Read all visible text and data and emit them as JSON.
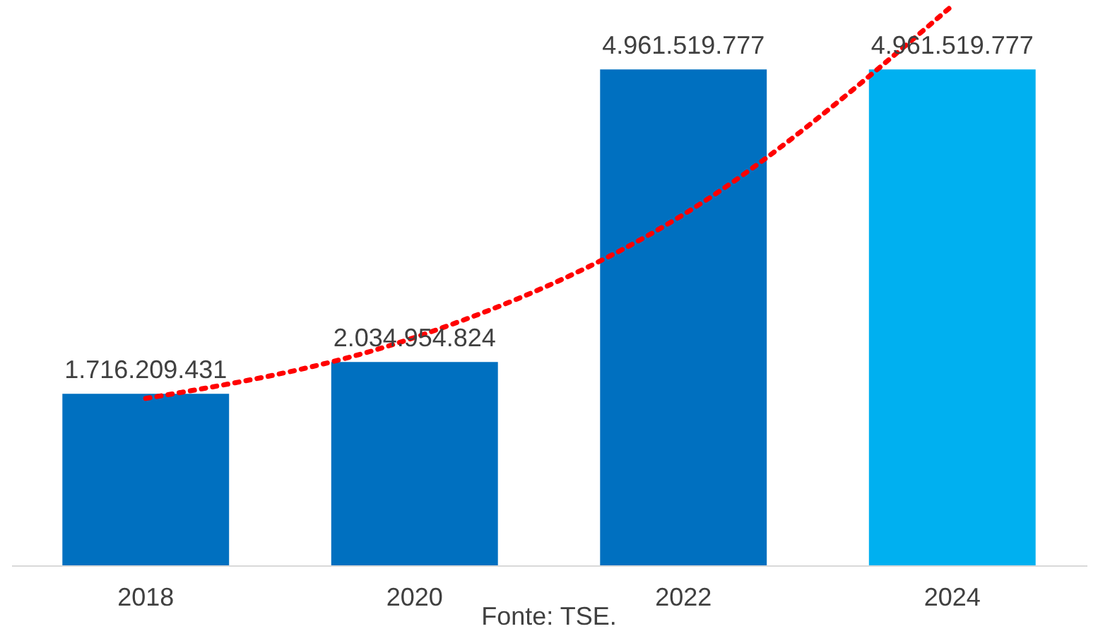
{
  "chart_data": {
    "type": "bar",
    "categories": [
      "2018",
      "2020",
      "2022",
      "2024"
    ],
    "series": [
      {
        "colors": [
          "#0070c0",
          "#0070c0",
          "#0070c0",
          "#00b0f0"
        ],
        "values": [
          1716209431,
          2034954824,
          4961519777,
          4961519777
        ],
        "value_labels": [
          "1.716.209.431",
          "2.034.954.824",
          "4.961.519.777",
          "4.961.519.777"
        ]
      },
      {
        "type": "line",
        "values": [
          1670000000,
          2280000000,
          3510000000,
          5600000000
        ],
        "color": "#ff0000",
        "line_style": "dotted"
      }
    ],
    "annotations": [
      "Fonte: TSE."
    ],
    "grid": false
  }
}
